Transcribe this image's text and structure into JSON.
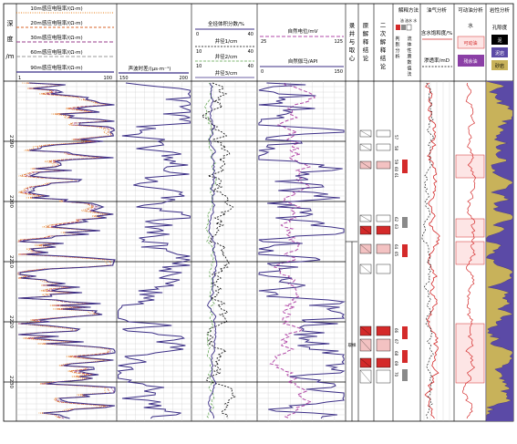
{
  "depth_header": "深度/m",
  "resistivity": {
    "scale_left": "1",
    "scale_right": "100",
    "curves": [
      {
        "label": "10m感应电阻率/(Ω·m)",
        "color": "#e8821e",
        "style": "dot"
      },
      {
        "label": "20m感应电阻率/(Ω·m)",
        "color": "#d8652a",
        "style": "dash"
      },
      {
        "label": "30m感应电阻率/(Ω·m)",
        "color": "#9a3d8e",
        "style": "dash"
      },
      {
        "label": "60m感应电阻率/(Ω·m)",
        "color": "#b0b0b0",
        "style": "dash"
      },
      {
        "label": "90m感应电阻率/(Ω·m)",
        "color": "#3b2e86",
        "style": "solid"
      }
    ]
  },
  "acoustic": {
    "label": "声波时差/(μs·m⁻¹)",
    "scale_left": "150",
    "scale_right": "200"
  },
  "porosity": {
    "label": "全烃体积分数/%",
    "scale_left": "0",
    "scale_right": "40",
    "calipers": [
      {
        "label": "井径1/cm",
        "scale_left": "10",
        "scale_right": "40"
      },
      {
        "label": "井径2/cm",
        "scale_left": "10",
        "scale_right": "40"
      },
      {
        "label": "井径3/cm",
        "scale_left": "10",
        "scale_right": "40"
      }
    ]
  },
  "sp_gr": {
    "sp_label": "自然电位/mV",
    "sp_left": "25",
    "sp_right": "125",
    "gr_label": "自然伽马/API",
    "gr_left": "0",
    "gr_right": "150"
  },
  "headers": {
    "coring": "录井与取心",
    "orig_interp": "原解释结论",
    "second_interp": "二次解释结论",
    "methods": "解释方法",
    "methods_sub": "油 油水 水",
    "method_cols": [
      "判别分析",
      "流体性质数值法"
    ],
    "oil_gas": "油气分析",
    "sat_label": "含水饱和度/%",
    "perm_label": "渗透率/mD",
    "movable": "可动油分析",
    "movable_water": "水",
    "movable_oil": "可动油",
    "residual_oil": "残余油",
    "lithology": "岩性分析",
    "lith_porosity": "孔隙度",
    "lith_legend": [
      "泥",
      "泥岩",
      "砂岩"
    ]
  },
  "depth_labels": [
    "2190",
    "2200",
    "2210",
    "2220",
    "2230"
  ],
  "core_note": "取样",
  "layer_numbers": [
    "57",
    "58",
    "59",
    "60",
    "61",
    "62",
    "63",
    "64",
    "65",
    "66",
    "67",
    "68",
    "69",
    "70"
  ],
  "colors": {
    "grid": "#c8c8c8",
    "depth_line": "#000000",
    "res_purple": "#3b2e86",
    "orange": "#e8821e",
    "sp_magenta": "#b24aa8",
    "lith_sand": "#c8b25a",
    "lith_shale": "#5b4aa6",
    "red": "#d42a2a"
  }
}
